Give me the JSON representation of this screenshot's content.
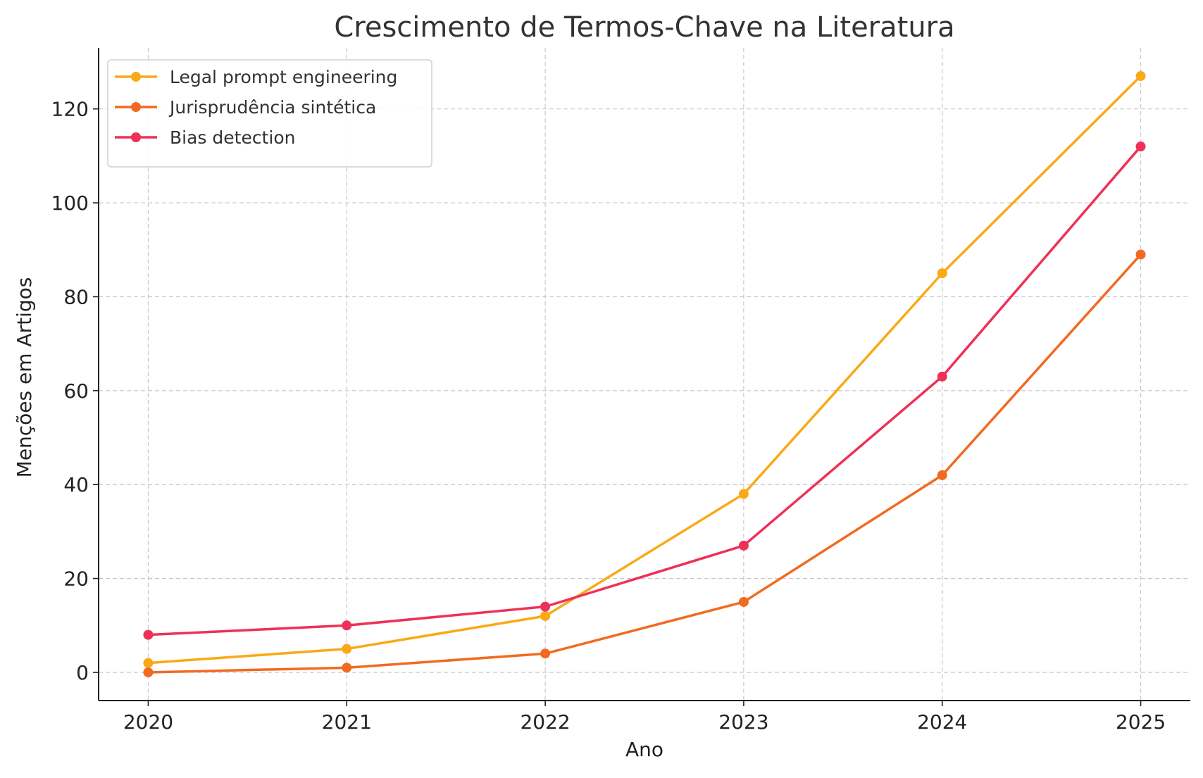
{
  "chart_data": {
    "type": "line",
    "title": "Crescimento de Termos-Chave na Literatura",
    "xlabel": "Ano",
    "ylabel": "Menções em Artigos",
    "x": [
      "2020",
      "2021",
      "2022",
      "2023",
      "2024",
      "2025"
    ],
    "y_ticks": [
      "0",
      "20",
      "40",
      "60",
      "80",
      "100",
      "120"
    ],
    "xlim": [
      2019.75,
      2025.25
    ],
    "ylim": [
      -6,
      133
    ],
    "grid": true,
    "legend_position": "top-left",
    "series": [
      {
        "name": "Legal prompt engineering",
        "values": [
          2,
          5,
          12,
          38,
          85,
          127
        ],
        "color": "#FAA916"
      },
      {
        "name": "Jurisprudência sintética",
        "values": [
          0,
          1,
          4,
          15,
          42,
          89
        ],
        "color": "#F26A21"
      },
      {
        "name": "Bias detection",
        "values": [
          8,
          10,
          14,
          27,
          63,
          112
        ],
        "color": "#EE3158"
      }
    ]
  }
}
